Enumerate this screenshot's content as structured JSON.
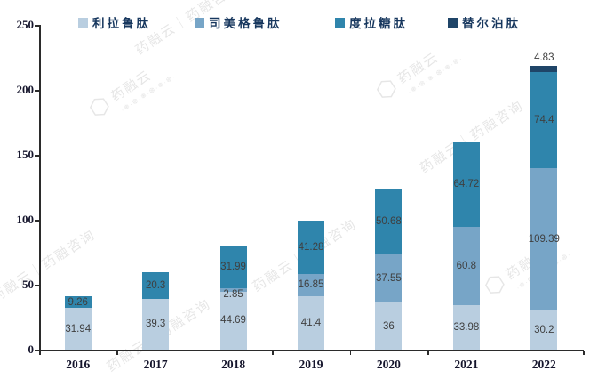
{
  "chart_data": {
    "type": "bar",
    "variant": "stacked-column",
    "title": "",
    "xlabel": "",
    "ylabel": "",
    "categories": [
      "2016",
      "2017",
      "2018",
      "2019",
      "2020",
      "2021",
      "2022"
    ],
    "series": [
      {
        "name": "利拉鲁肽",
        "color": "#b9cee0",
        "values": [
          31.94,
          39.3,
          44.69,
          41.4,
          36,
          33.98,
          30.2
        ],
        "labels": [
          "31.94",
          "39.3",
          "44.69",
          "41.4",
          "36",
          "33.98",
          "30.2"
        ]
      },
      {
        "name": "司美格鲁肽",
        "color": "#77a5c7",
        "values": [
          null,
          null,
          2.85,
          16.85,
          37.55,
          60.8,
          109.39
        ],
        "labels": [
          null,
          null,
          "2.85",
          "16.85",
          "37.55",
          "60.8",
          "109.39"
        ]
      },
      {
        "name": "度拉糖肽",
        "color": "#2f85ac",
        "values": [
          9.26,
          20.3,
          31.99,
          41.28,
          50.68,
          64.72,
          74.4
        ],
        "labels": [
          "9.26",
          "20.3",
          "31.99",
          "41.28",
          "50.68",
          "64.72",
          "74.4"
        ]
      },
      {
        "name": "替尔泊肽",
        "color": "#1f4568",
        "values": [
          null,
          null,
          null,
          null,
          null,
          null,
          4.83
        ],
        "labels": [
          null,
          null,
          null,
          null,
          null,
          null,
          "4.83"
        ]
      }
    ],
    "totals": [
      41.2,
      59.6,
      79.53,
      99.53,
      124.23,
      159.5,
      218.82
    ],
    "ylim": [
      0,
      250
    ],
    "y_ticks": [
      "0",
      "50",
      "100",
      "150",
      "200",
      "250"
    ],
    "grid": false,
    "legend_position": "top"
  },
  "colors": {
    "axis": "#2b2b2b",
    "value_label": "#3f3f3f",
    "legend_text": "#17375e",
    "watermark": "#d9d9d9"
  },
  "watermark": {
    "brand": "药融云",
    "full": "药融云｜药融咨询",
    "dots": "·❅·❆·❅·❆·❅·❆·"
  }
}
